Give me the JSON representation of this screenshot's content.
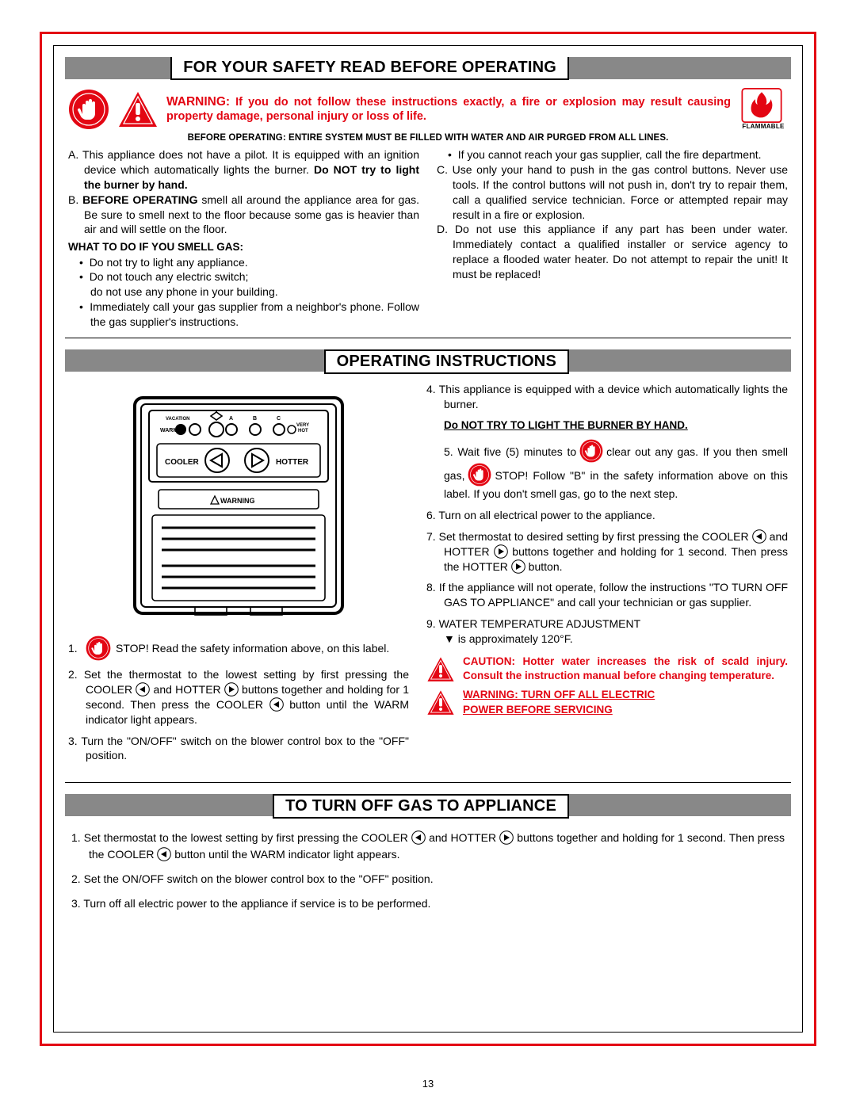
{
  "colors": {
    "red": "#e30613",
    "gray_bar": "#888888",
    "black": "#000000"
  },
  "page_number": "13",
  "sec1": {
    "title": "FOR YOUR SAFETY READ BEFORE OPERATING",
    "warning_lead": "WARNING:",
    "warning_body": "If you do not follow these instructions exactly, a fire or explosion may result causing property damage, personal injury or loss of life.",
    "flammable_label": "FLAMMABLE",
    "before_operating": "BEFORE OPERATING: ENTIRE SYSTEM MUST BE FILLED WITH WATER AND AIR PURGED FROM ALL LINES.",
    "left": {
      "A_pre": "A. This appliance does not have a pilot.  It is equipped with an ignition device which automatically lights the burner. ",
      "A_bold": "Do NOT try to light the burner by hand.",
      "B_bold": "BEFORE OPERATING",
      "B_rest": " smell all around the appliance area for gas. Be sure to smell next to the floor because some gas is heavier than air and will settle on the floor.",
      "what_heading": "WHAT TO DO IF YOU SMELL GAS:",
      "b1": "Do not try to light any appliance.",
      "b2a": "Do not touch any electric switch;",
      "b2b": "do not use any phone in your building.",
      "b3": "Immediately call your gas supplier from a neighbor's phone. Follow the gas supplier's instructions."
    },
    "right": {
      "b4": "If you cannot reach your gas supplier, call the fire department.",
      "C": "C. Use only your hand to push in the gas control buttons. Never use tools. If the control buttons will not push in, don't try to repair them, call a qualified service technician. Force or attempted repair may result in a fire or explosion.",
      "D": "D. Do not use this appliance if any part has been under water. Immediately contact a qualified installer or service agency to replace a flooded water heater. Do not attempt to repair the unit! It must be replaced!"
    }
  },
  "sec2": {
    "title": "OPERATING INSTRUCTIONS",
    "diagram": {
      "vacation": "VACATION",
      "warm": "WARM",
      "a": "A",
      "b": "B",
      "c": "C",
      "very_hot": "VERY HOT",
      "cooler": "COOLER",
      "hotter": "HOTTER",
      "warning": "WARNING"
    },
    "left": {
      "n1": "STOP!   Read the safety information above, on this label.",
      "n2": "2.  Set the thermostat to the lowest setting by first pressing the COOLER        and HOTTER        buttons together and holding for 1 second. Then press the COOLER        button until the WARM indicator light appears.",
      "n3": "3.  Turn the \"ON/OFF\" switch on the blower control box to the \"OFF\" position."
    },
    "right": {
      "n4": "4.  This appliance is equipped with a device which automatically lights the burner.",
      "n4b": "Do NOT TRY TO LIGHT THE BURNER BY HAND.",
      "n5a": "5.  Wait five (5) minutes to",
      "n5b": "clear  out any gas. If you then smell gas,",
      "n5c": "STOP!  Follow \"B\" in the safety information above on this label. If you don't smell gas, go to the next step.",
      "n6": "6.  Turn on all electrical power to the appliance.",
      "n7": "7.  Set thermostat to desired setting by first pressing the COOLER         and HOTTER         buttons together and holding for 1 second. Then press the HOTTER        button.",
      "n8": "8.  If the appliance will not operate, follow the instructions \"TO TURN OFF GAS TO APPLIANCE\" and call your technician or gas supplier.",
      "n9a": "9.  WATER TEMPERATURE ADJUSTMENT",
      "n9b": "▼ is approximately 120°F.",
      "caution": "CAUTION:  Hotter water increases the risk of scald injury.  Consult the instruction manual before changing temperature.",
      "warn2a": "WARNING: TURN OFF ALL ELECTRIC",
      "warn2b": "POWER BEFORE SERVICING"
    }
  },
  "sec3": {
    "title": "TO TURN OFF GAS TO APPLIANCE",
    "n1": "1.  Set thermostat to the lowest setting by first pressing the COOLER        and HOTTER         buttons together and holding for 1 second. Then press the COOLER         button until the WARM indicator light appears.",
    "n2": "2.  Set the ON/OFF switch on the blower control box to the \"OFF\" position.",
    "n3": "3.  Turn off all electric power to the appliance if service is to be performed."
  }
}
